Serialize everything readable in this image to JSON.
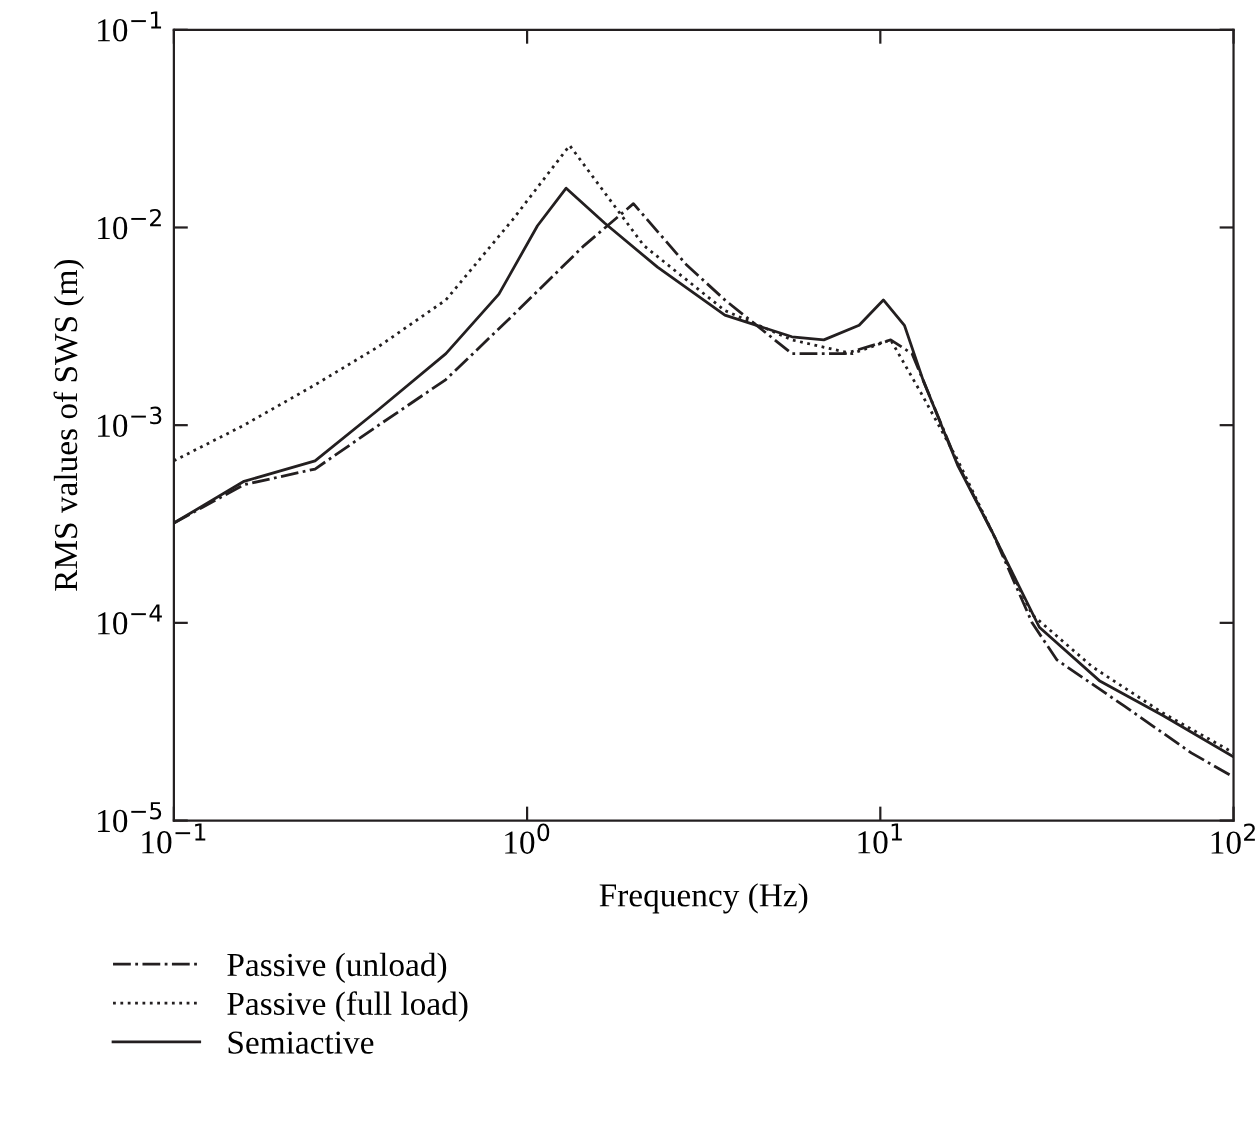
{
  "chart_data": {
    "type": "line",
    "xlabel": "Frequency (Hz)",
    "ylabel": "RMS values of SWS (m)",
    "log": "xy",
    "grid": false,
    "legend": "bottom",
    "marker": "none",
    "xlim": [
      0.1,
      100
    ],
    "ylim": [
      1e-05,
      0.1
    ],
    "xticks": [
      {
        "value": 0.1,
        "label": "10$^{−1}$"
      },
      {
        "value": 1,
        "label": "10$^{0}$"
      },
      {
        "value": 10,
        "label": "10$^{1}$"
      },
      {
        "value": 100,
        "label": "10$^{2}$"
      }
    ],
    "yticks": [
      {
        "value": 1e-05,
        "label": "10$^{−5}$"
      },
      {
        "value": 0.0001,
        "label": "10$^{−4}$"
      },
      {
        "value": 0.001,
        "label": "10$^{−3}$"
      },
      {
        "value": 0.01,
        "label": "10$^{−2}$"
      },
      {
        "value": 0.1,
        "label": "10$^{−1}$"
      }
    ],
    "series": [
      {
        "name": "Passive (unload)",
        "color": "#231f20",
        "line_style": "dashdot",
        "x": [
          0.1,
          0.158,
          0.251,
          0.38,
          0.589,
          0.912,
          1.45,
          2.0,
          2.82,
          3.63,
          5.62,
          7.94,
          10.7,
          12.3,
          16.6,
          20.9,
          26.9,
          31.6,
          49.0,
          75.9,
          100
        ],
        "values": [
          0.00032,
          0.0005,
          0.0006,
          0.001,
          0.0017,
          0.0036,
          0.0081,
          0.0132,
          0.0065,
          0.0043,
          0.0023,
          0.0023,
          0.0027,
          0.0023,
          0.00063,
          0.00028,
          0.0001,
          6.5e-05,
          3.8e-05,
          2.2e-05,
          1.66e-05
        ]
      },
      {
        "name": "Passive (full load)",
        "color": "#231f20",
        "line_style": "dotted",
        "x": [
          0.1,
          0.158,
          0.251,
          0.38,
          0.589,
          0.912,
          1.32,
          2.14,
          3.63,
          5.62,
          8.32,
          10.7,
          13.2,
          16.6,
          20.9,
          26.9,
          39.8,
          63.1,
          100
        ],
        "values": [
          0.00066,
          0.001,
          0.0016,
          0.0025,
          0.0043,
          0.011,
          0.026,
          0.0081,
          0.0038,
          0.0027,
          0.0023,
          0.0027,
          0.0014,
          0.00066,
          0.00028,
          0.00011,
          6e-05,
          3.5e-05,
          2.2e-05
        ]
      },
      {
        "name": "Semiactive",
        "color": "#231f20",
        "line_style": "solid",
        "x": [
          0.1,
          0.158,
          0.251,
          0.38,
          0.589,
          0.832,
          1.07,
          1.29,
          1.66,
          2.34,
          3.63,
          5.62,
          6.92,
          8.71,
          10.2,
          11.7,
          13.2,
          16.6,
          20.9,
          28.2,
          41.7,
          63.1,
          100
        ],
        "values": [
          0.00032,
          0.00052,
          0.00066,
          0.0012,
          0.0023,
          0.0046,
          0.0102,
          0.0158,
          0.0105,
          0.0063,
          0.0036,
          0.0028,
          0.0027,
          0.0032,
          0.0043,
          0.0032,
          0.0017,
          0.00062,
          0.00028,
          9.5e-05,
          5.1e-05,
          3.4e-05,
          2.1e-05
        ]
      }
    ]
  }
}
